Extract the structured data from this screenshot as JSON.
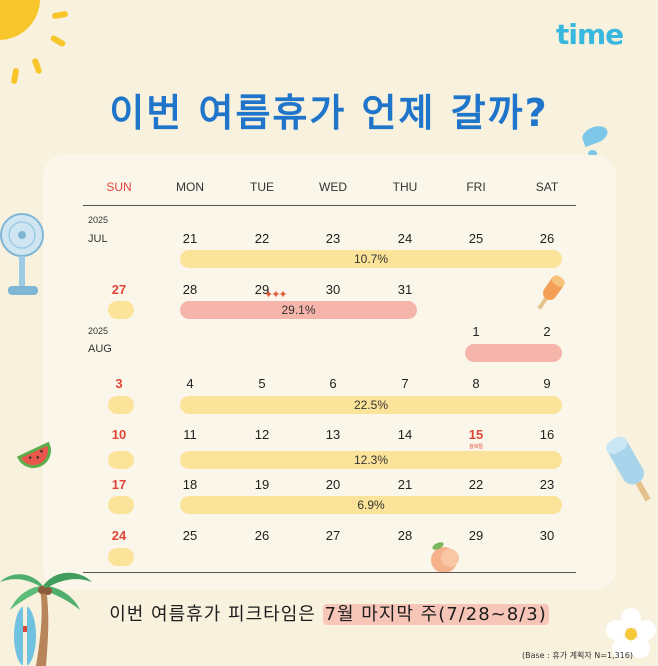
{
  "logo": "time",
  "title": "이번 여름휴가 언제 갈까?",
  "weekdays": [
    "SUN",
    "MON",
    "TUE",
    "WED",
    "THU",
    "FRI",
    "SAT"
  ],
  "months": [
    {
      "year": "2025",
      "month": "JUL"
    },
    {
      "year": "2025",
      "month": "AUG"
    }
  ],
  "weeks": [
    {
      "dates": [
        "",
        "21",
        "22",
        "23",
        "24",
        "25",
        "26"
      ],
      "share": "10.7%"
    },
    {
      "dates": [
        "27",
        "28",
        "29",
        "30",
        "31",
        "",
        ""
      ],
      "share": "29.1%"
    },
    {
      "dates": [
        "",
        "",
        "",
        "",
        "",
        "1",
        "2"
      ],
      "share": ""
    },
    {
      "dates": [
        "3",
        "4",
        "5",
        "6",
        "7",
        "8",
        "9"
      ],
      "share": "22.5%"
    },
    {
      "dates": [
        "10",
        "11",
        "12",
        "13",
        "14",
        "15",
        "16"
      ],
      "share": "12.3%"
    },
    {
      "dates": [
        "17",
        "18",
        "19",
        "20",
        "21",
        "22",
        "23"
      ],
      "share": "6.9%"
    },
    {
      "dates": [
        "24",
        "25",
        "26",
        "27",
        "28",
        "29",
        "30"
      ],
      "share": ""
    }
  ],
  "holiday_label": "광복절",
  "bottom": {
    "prefix": "이번 여름휴가 피크타임은 ",
    "highlight": "7월 마지막 주(7/28~8/3)"
  },
  "base_note": "(Base : 휴가 계획자 N=1,316)",
  "colors": {
    "background": "#f8f1de",
    "title": "#1f75c9",
    "bar_yellow": "#fbe49a",
    "bar_pink": "#f6b5aa",
    "sunday": "#e0453a"
  },
  "icons": [
    "sun-icon",
    "water-drop-icon",
    "fan-icon",
    "popsicle-icon",
    "watermelon-icon",
    "ice-bar-icon",
    "peach-icon",
    "palm-tree-icon",
    "surfboard-icon",
    "flower-icon",
    "sparkle-icon"
  ]
}
